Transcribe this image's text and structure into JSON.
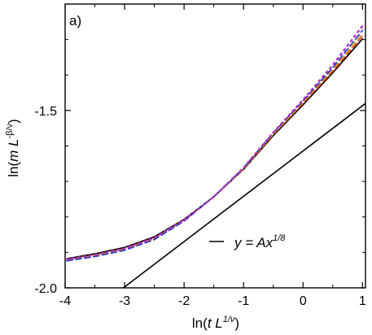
{
  "chart_data": {
    "type": "line",
    "panel_label": "a)",
    "xlim": [
      -4,
      1.05
    ],
    "ylim": [
      -2.0,
      -1.2
    ],
    "xticks": [
      -4,
      -3,
      -2,
      -1,
      0,
      1
    ],
    "xtick_labels": [
      "-4",
      "-3",
      "-2",
      "-1",
      "0",
      "1"
    ],
    "yticks": [
      -2.0,
      -1.5
    ],
    "ytick_labels": [
      "-2.0",
      "-1.5"
    ],
    "xlabel": {
      "pre": "ln(",
      "var": "t L",
      "sup": "1/ν",
      "post": ")"
    },
    "ylabel": {
      "pre": "ln(",
      "var": "m L",
      "sup": "-β/ν",
      "post": ")"
    },
    "legend": {
      "position": "lower-right",
      "prefix": "y = Ax",
      "sup": "1/8"
    },
    "grid": false,
    "series": [
      {
        "color": "#000000",
        "style": "solid",
        "x": [
          -3.97,
          -3.5,
          -3.0,
          -2.5,
          -2.0,
          -1.5,
          -1.0,
          -0.5,
          0.0,
          0.5,
          1.0
        ],
        "y": [
          -1.918,
          -1.904,
          -1.886,
          -1.856,
          -1.807,
          -1.743,
          -1.666,
          -1.571,
          -1.484,
          -1.394,
          -1.298
        ]
      },
      {
        "color": "#e0301e",
        "style": "dashed",
        "x": [
          -3.97,
          -3.5,
          -3.0,
          -2.5,
          -2.0,
          -1.5,
          -1.0,
          -0.5,
          0.0,
          0.5,
          1.0
        ],
        "y": [
          -1.921,
          -1.908,
          -1.89,
          -1.86,
          -1.81,
          -1.744,
          -1.665,
          -1.568,
          -1.48,
          -1.39,
          -1.29
        ]
      },
      {
        "color": "#c8a800",
        "style": "dashed",
        "x": [
          -3.97,
          -3.5,
          -3.0,
          -2.5,
          -2.0,
          -1.5,
          -1.0,
          -0.5,
          0.0,
          0.5,
          1.0
        ],
        "y": [
          -1.922,
          -1.91,
          -1.892,
          -1.862,
          -1.811,
          -1.744,
          -1.664,
          -1.566,
          -1.477,
          -1.385,
          -1.282
        ]
      },
      {
        "color": "#2030d0",
        "style": "dashed",
        "x": [
          -3.97,
          -3.5,
          -3.0,
          -2.5,
          -2.0,
          -1.5,
          -1.0,
          -0.5,
          0.0,
          0.5,
          1.0
        ],
        "y": [
          -1.924,
          -1.912,
          -1.894,
          -1.864,
          -1.812,
          -1.743,
          -1.662,
          -1.563,
          -1.473,
          -1.379,
          -1.274
        ]
      },
      {
        "color": "#b030c8",
        "style": "dotted",
        "x": [
          -3.97,
          -3.5,
          -3.0,
          -2.5,
          -2.0,
          -1.5,
          -1.0,
          -0.5,
          0.0,
          0.5,
          1.0
        ],
        "y": [
          -1.92,
          -1.907,
          -1.889,
          -1.859,
          -1.809,
          -1.743,
          -1.662,
          -1.562,
          -1.47,
          -1.372,
          -1.262
        ]
      },
      {
        "color": "#000000",
        "style": "solid",
        "kind": "asymptote",
        "x": [
          -3.02,
          1.05
        ],
        "y": [
          -2.0,
          -1.48
        ]
      }
    ]
  }
}
